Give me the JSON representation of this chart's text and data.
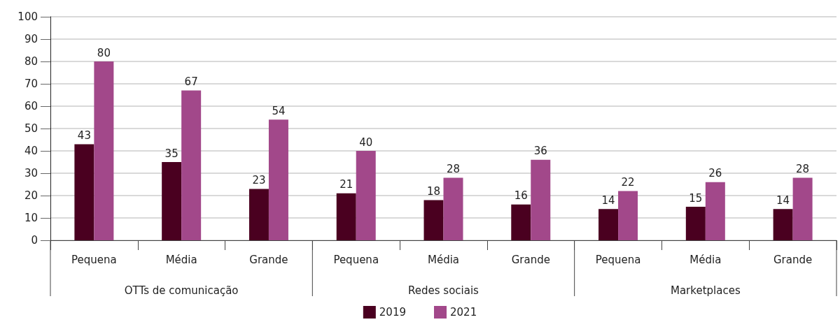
{
  "chart_data": {
    "type": "bar",
    "categories": [
      "Pequena",
      "Média",
      "Grande",
      "Pequena",
      "Média",
      "Grande",
      "Pequena",
      "Média",
      "Grande"
    ],
    "annotations": [
      "OTTs de comunicação",
      "Redes sociais",
      "Marketplaces"
    ],
    "series": [
      {
        "name": "2019",
        "color": "#4a0020",
        "values": [
          43,
          35,
          23,
          21,
          18,
          16,
          14,
          15,
          14
        ]
      },
      {
        "name": "2021",
        "color": "#a2488a",
        "values": [
          80,
          67,
          54,
          40,
          28,
          36,
          22,
          26,
          28
        ]
      }
    ],
    "ylim": [
      0,
      100
    ],
    "yticks": [
      0,
      10,
      20,
      30,
      40,
      50,
      60,
      70,
      80,
      90,
      100
    ],
    "grid": "y",
    "legend": "bottom",
    "data_labels": true
  }
}
